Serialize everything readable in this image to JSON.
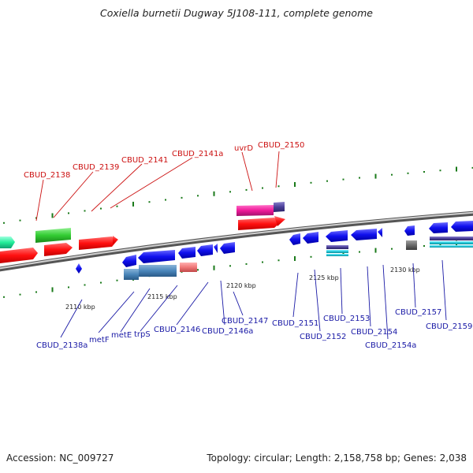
{
  "title": "Coxiella burnetii Dugway 5J108-111, complete genome",
  "footer": {
    "accession": "Accession: NC_009727",
    "summary": "Topology: circular; Length: 2,158,758 bp; Genes: 2,038"
  },
  "ticks": [
    "2110 kbp",
    "2115 kbp",
    "2120 kbp",
    "2125 kbp",
    "2130 kbp"
  ],
  "top_labels": [
    "CBUD_2138",
    "CBUD_2139",
    "CBUD_2141",
    "CBUD_2141a",
    "uvrD",
    "CBUD_2150"
  ],
  "bottom_labels": [
    "CBUD_2138a",
    "metF",
    "metE",
    "trpS",
    "CBUD_2146",
    "CBUD_2146a",
    "CBUD_2147",
    "CBUD_2151",
    "CBUD_2152",
    "CBUD_2153",
    "CBUD_2154",
    "CBUD_2154a",
    "CBUD_2157",
    "CBUD_2159"
  ],
  "colors": {
    "red_label": "#cc1111",
    "blue_label": "#1a1aa6",
    "forward_gene": "#ff1a1a",
    "reverse_gene": "#1a1aff",
    "backbone": "#8a8a8a",
    "tick": "#1a7a1a"
  }
}
